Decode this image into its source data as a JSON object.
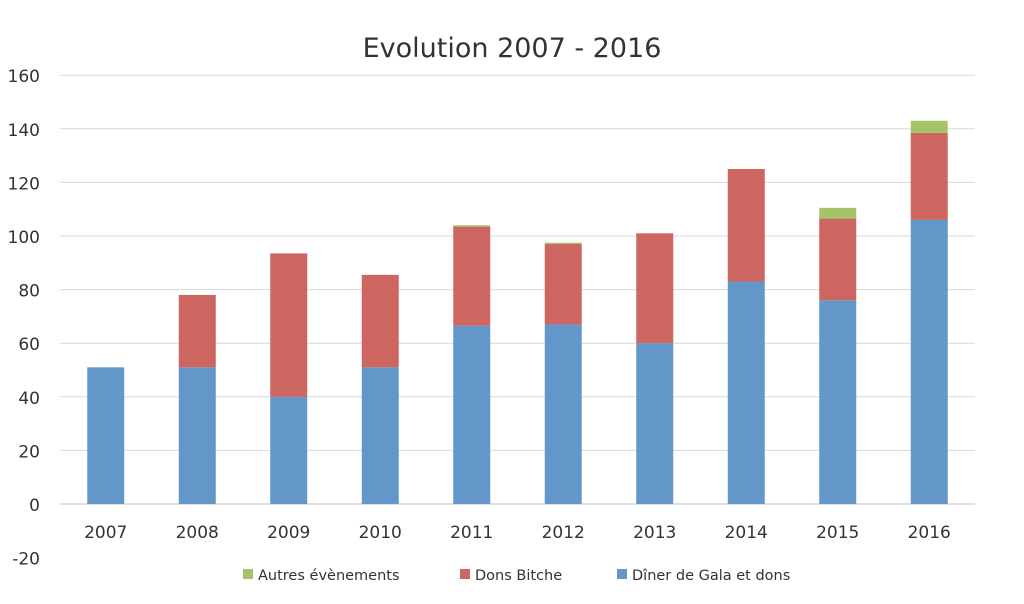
{
  "chart_data": {
    "type": "bar",
    "stacked": true,
    "title": "Evolution 2007 - 2016",
    "xlabel": "",
    "ylabel": "",
    "ylim": [
      -20,
      160
    ],
    "yticks": [
      -20,
      0,
      20,
      40,
      60,
      80,
      100,
      120,
      140,
      160
    ],
    "grid": true,
    "legend_position": "bottom",
    "categories": [
      "2007",
      "2008",
      "2009",
      "2010",
      "2011",
      "2012",
      "2013",
      "2014",
      "2015",
      "2016"
    ],
    "series": [
      {
        "name": "Dîner de Gala et dons",
        "color": "#6497c9",
        "values": [
          51,
          51,
          40,
          51,
          66.5,
          67,
          60,
          83,
          76,
          106
        ]
      },
      {
        "name": "Dons Bitche",
        "color": "#cd6561",
        "values": [
          0,
          27,
          53.5,
          34.5,
          37,
          30,
          41,
          42,
          30.5,
          32.5
        ]
      },
      {
        "name": "Autres évènements",
        "color": "#a5c46a",
        "values": [
          0,
          0,
          0,
          0,
          0.5,
          0.5,
          0,
          0,
          4,
          4.5
        ]
      }
    ],
    "legend_order": [
      "Autres évènements",
      "Dons Bitche",
      "Dîner de Gala et dons"
    ]
  }
}
